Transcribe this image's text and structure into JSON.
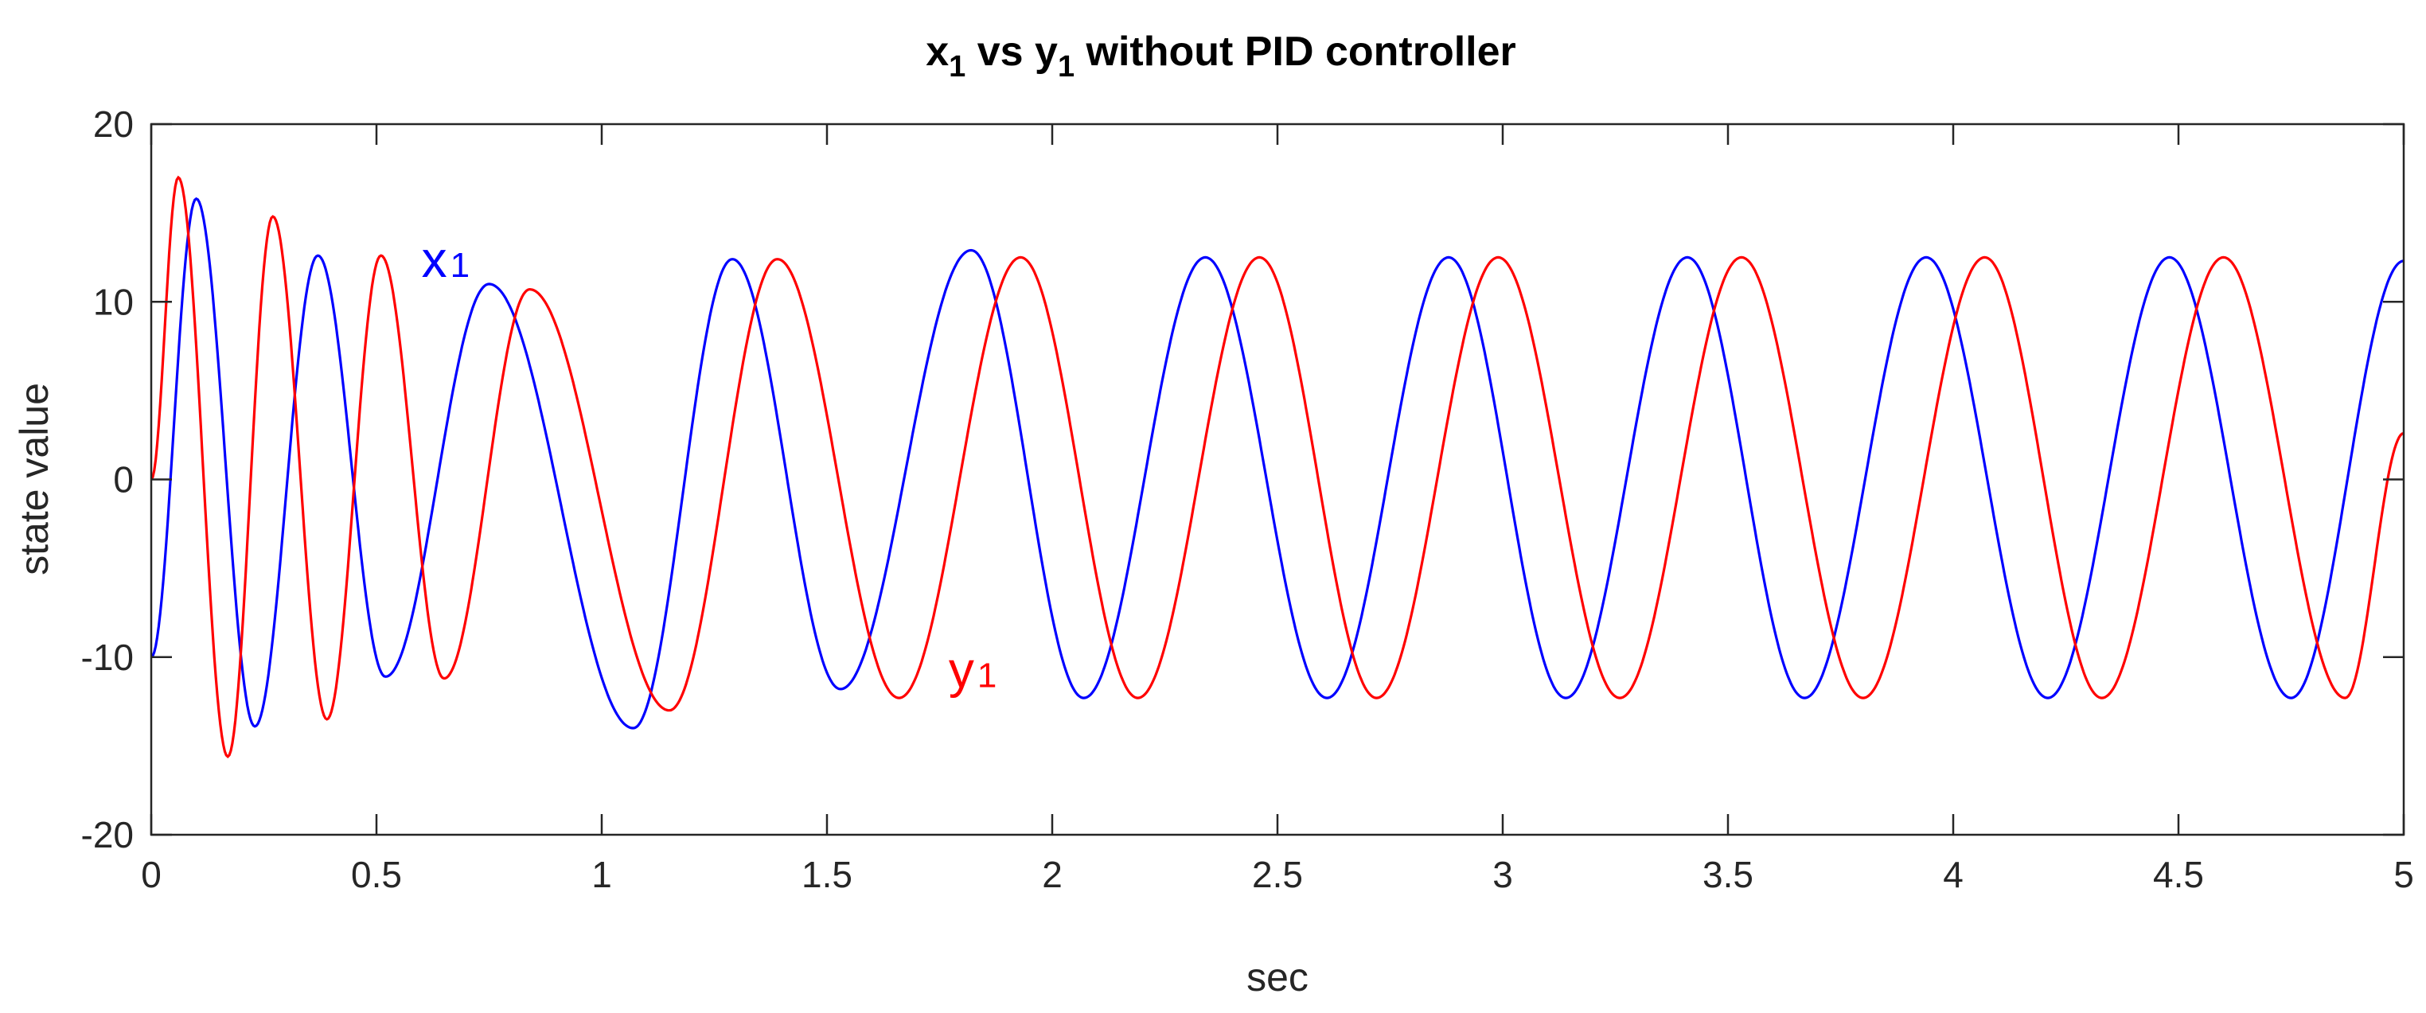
{
  "chart_data": {
    "type": "line",
    "title": {
      "main": "x",
      "sub1": "1",
      "mid": " vs y",
      "sub2": "1",
      "tail": " without PID controller"
    },
    "xlabel": "sec",
    "ylabel": "state value",
    "xlim": [
      0,
      5
    ],
    "ylim": [
      -20,
      20
    ],
    "xticks": [
      0,
      0.5,
      1,
      1.5,
      2,
      2.5,
      3,
      3.5,
      4,
      4.5,
      5
    ],
    "xtick_labels": [
      "0",
      "0.5",
      "1",
      "1.5",
      "2",
      "2.5",
      "3",
      "3.5",
      "4",
      "4.5",
      "5"
    ],
    "yticks": [
      -20,
      -10,
      0,
      10,
      20
    ],
    "ytick_labels": [
      "-20",
      "-10",
      "0",
      "10",
      "20"
    ],
    "grid": false,
    "series": [
      {
        "color": "#0000ff",
        "x": [
          0,
          0.1,
          0.23,
          0.37,
          0.52,
          0.75,
          1.07,
          1.29,
          1.53,
          1.82,
          2.07,
          2.34,
          2.61,
          2.88,
          3.14,
          3.41,
          3.67,
          3.94,
          4.21,
          4.48,
          4.75,
          5
        ],
        "y": [
          -10,
          15.8,
          -13.9,
          12.6,
          -11.1,
          11,
          -14,
          12.4,
          -11.8,
          12.9,
          -12.3,
          12.5,
          -12.3,
          12.5,
          -12.3,
          12.5,
          -12.3,
          12.5,
          -12.3,
          12.5,
          -12.3,
          12.3
        ]
      },
      {
        "color": "#ff0000",
        "x": [
          0,
          0.06,
          0.17,
          0.27,
          0.39,
          0.51,
          0.65,
          0.84,
          1.15,
          1.39,
          1.66,
          1.93,
          2.19,
          2.46,
          2.72,
          2.99,
          3.26,
          3.53,
          3.8,
          4.07,
          4.33,
          4.6,
          4.87,
          5
        ],
        "y": [
          0,
          17,
          -15.6,
          14.8,
          -13.5,
          12.6,
          -11.2,
          10.7,
          -13,
          12.4,
          -12.3,
          12.5,
          -12.3,
          12.5,
          -12.3,
          12.5,
          -12.3,
          12.5,
          -12.3,
          12.5,
          -12.3,
          12.5,
          -12.3,
          2.6
        ]
      }
    ],
    "annotations": [
      {
        "text": "x",
        "sub": "1",
        "color": "#0000ff",
        "x": 0.6,
        "y": 11.4
      },
      {
        "text": "y",
        "sub": "1",
        "color": "#ff0000",
        "x": 1.77,
        "y": -11.7
      }
    ]
  }
}
